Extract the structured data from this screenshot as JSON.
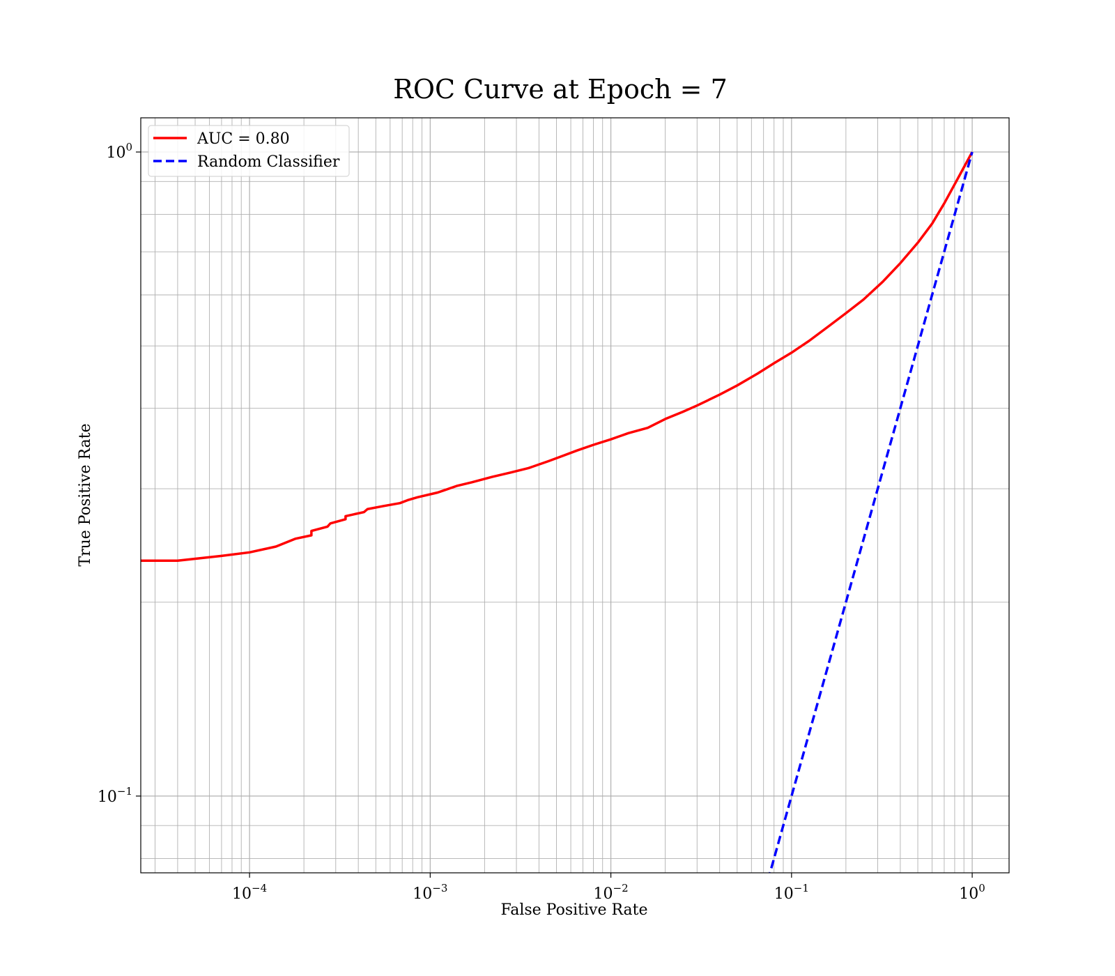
{
  "chart_data": {
    "type": "line",
    "title": "ROC Curve at Epoch = 7",
    "xlabel": "False Positive Rate",
    "ylabel": "True Positive Rate",
    "xscale": "log",
    "yscale": "log",
    "xlim": [
      2.5e-05,
      1.6
    ],
    "ylim": [
      0.076,
      1.13
    ],
    "grid": true,
    "grid_minor": true,
    "legend_position": "top-left",
    "x_ticks": [
      {
        "value": 0.0001,
        "base": "10",
        "exp": "−4"
      },
      {
        "value": 0.001,
        "base": "10",
        "exp": "−3"
      },
      {
        "value": 0.01,
        "base": "10",
        "exp": "−2"
      },
      {
        "value": 0.1,
        "base": "10",
        "exp": "−1"
      },
      {
        "value": 1,
        "base": "10",
        "exp": "0"
      }
    ],
    "y_ticks": [
      {
        "value": 0.1,
        "base": "10",
        "exp": "−1"
      },
      {
        "value": 1,
        "base": "10",
        "exp": "0"
      }
    ],
    "series": [
      {
        "name": "AUC = 0.80",
        "color": "#ff0000",
        "style": "solid",
        "x": [
          2.5e-05,
          4e-05,
          7e-05,
          0.0001,
          0.00014,
          0.00018,
          0.00022,
          0.00022,
          0.00027,
          0.00028,
          0.00034,
          0.00034,
          0.00043,
          0.00045,
          0.00055,
          0.00068,
          0.00075,
          0.00085,
          0.0011,
          0.0014,
          0.0017,
          0.0022,
          0.0028,
          0.0035,
          0.0045,
          0.0055,
          0.0065,
          0.008,
          0.01,
          0.0125,
          0.016,
          0.02,
          0.025,
          0.03,
          0.04,
          0.05,
          0.065,
          0.08,
          0.1,
          0.125,
          0.16,
          0.2,
          0.25,
          0.32,
          0.4,
          0.5,
          0.6,
          0.7,
          0.8,
          0.9,
          1.0
        ],
        "y": [
          0.232,
          0.232,
          0.236,
          0.239,
          0.244,
          0.251,
          0.254,
          0.258,
          0.262,
          0.265,
          0.269,
          0.272,
          0.276,
          0.279,
          0.282,
          0.285,
          0.288,
          0.291,
          0.296,
          0.303,
          0.307,
          0.313,
          0.318,
          0.323,
          0.331,
          0.338,
          0.344,
          0.351,
          0.358,
          0.366,
          0.373,
          0.385,
          0.395,
          0.404,
          0.42,
          0.434,
          0.453,
          0.47,
          0.488,
          0.509,
          0.536,
          0.562,
          0.59,
          0.629,
          0.672,
          0.723,
          0.774,
          0.832,
          0.891,
          0.947,
          1.0
        ]
      },
      {
        "name": "Random Classifier",
        "color": "#0000ff",
        "style": "dashed",
        "x": [
          0.074,
          1.0
        ],
        "y": [
          0.074,
          1.0
        ]
      }
    ]
  }
}
